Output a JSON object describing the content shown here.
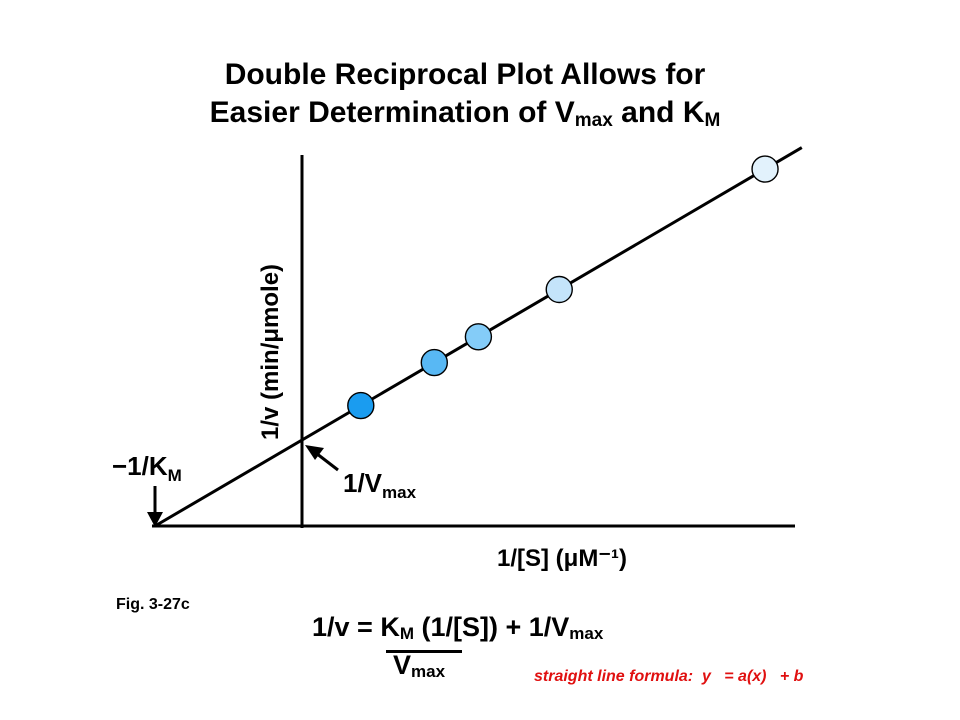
{
  "title": {
    "line1": "Double Reciprocal Plot Allows for",
    "line2_prefix": "Easier Determination of V",
    "line2_vmax_sub": "max",
    "line2_mid": " and K",
    "line2_km_sub": "M"
  },
  "figure_label": "Fig. 3-27c",
  "equation": {
    "lhs": "1/v = ",
    "km": "K",
    "km_sub": "M",
    "middle": " (1/[S])  +  1/V",
    "vmax_sub": "max",
    "denominator": "V",
    "denominator_sub": "max"
  },
  "formula_note": "straight line formula:  y   = a(x)   + b",
  "chart_data": {
    "type": "scatter",
    "title": "",
    "xlabel": "1/[S] (μM⁻¹)",
    "ylabel": "1/v (min/μmole)",
    "axes_tick_labels": "none",
    "grid": false,
    "line": {
      "x_intercept_label": "−1/K",
      "x_intercept_sub": "M",
      "y_intercept_label": "1/V",
      "y_intercept_sub": "max",
      "x_intercept": -1,
      "y_intercept": 1,
      "slope": 1
    },
    "points": [
      {
        "x": 0.4,
        "y": 1.4,
        "color": "#1a9cf0"
      },
      {
        "x": 0.9,
        "y": 1.9,
        "color": "#58b8f4"
      },
      {
        "x": 1.2,
        "y": 2.2,
        "color": "#84ccf8"
      },
      {
        "x": 1.75,
        "y": 2.75,
        "color": "#c4e4fa"
      },
      {
        "x": 3.15,
        "y": 4.15,
        "color": "#e2f2fc"
      }
    ],
    "xlim": [
      -1,
      3.4
    ],
    "ylim": [
      0,
      4.5
    ]
  }
}
